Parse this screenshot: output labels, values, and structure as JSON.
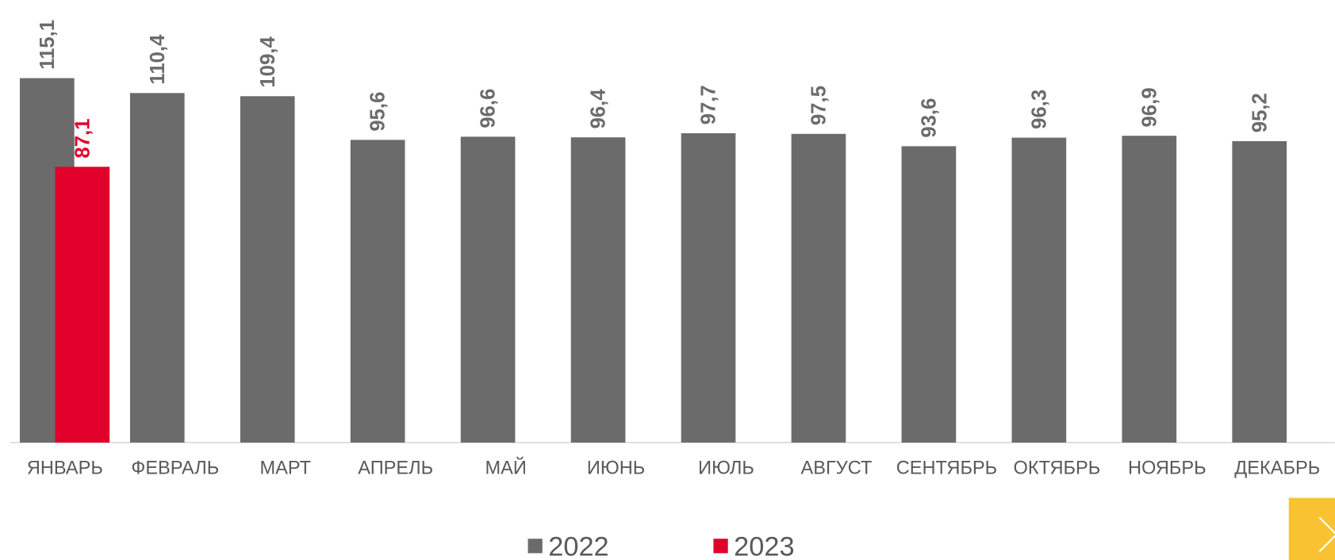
{
  "chart_data": {
    "type": "bar",
    "categories": [
      "ЯНВАРЬ",
      "ФЕВРАЛЬ",
      "МАРТ",
      "АПРЕЛЬ",
      "МАЙ",
      "ИЮНЬ",
      "ИЮЛЬ",
      "АВГУСТ",
      "СЕНТЯБРЬ",
      "ОКТЯБРЬ",
      "НОЯБРЬ",
      "ДЕКАБРЬ"
    ],
    "series": [
      {
        "name": "2022",
        "color": "#6b6b6b",
        "values": [
          115.1,
          110.4,
          109.4,
          95.6,
          96.6,
          96.4,
          97.7,
          97.5,
          93.6,
          96.3,
          96.9,
          95.2
        ],
        "value_labels": [
          "115,1",
          "110,4",
          "109,4",
          "95,6",
          "96,6",
          "96,4",
          "97,7",
          "97,5",
          "93,6",
          "96,3",
          "96,9",
          "95,2"
        ]
      },
      {
        "name": "2023",
        "color": "#e0002a",
        "values": [
          87.1,
          null,
          null,
          null,
          null,
          null,
          null,
          null,
          null,
          null,
          null,
          null
        ],
        "value_labels": [
          "87,1",
          null,
          null,
          null,
          null,
          null,
          null,
          null,
          null,
          null,
          null,
          null
        ]
      }
    ],
    "legend": "bottom"
  }
}
